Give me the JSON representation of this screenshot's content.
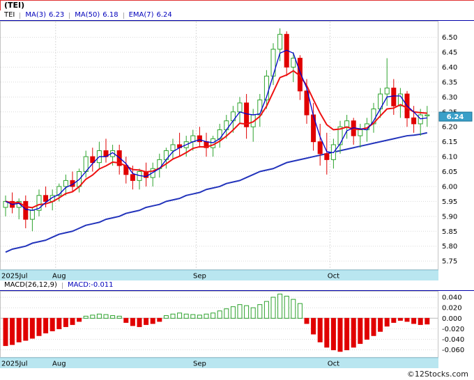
{
  "header": {
    "title": "(TEI)"
  },
  "legend": {
    "symbol": "TEI",
    "items": [
      {
        "label": "MA(3)",
        "value": "6.23"
      },
      {
        "label": "MA(50)",
        "value": "6.18"
      },
      {
        "label": "EMA(7)",
        "value": "6.24"
      }
    ]
  },
  "macd_legend": {
    "label": "MACD(26,12,9)",
    "value": "MACD:-0.011"
  },
  "footer": {
    "credit": "©12Stocks.com"
  },
  "colors": {
    "up": "#2da32d",
    "down": "#e00000",
    "ma3": "#0000cc",
    "ema7": "#ee1111",
    "ma50": "#2233bb",
    "grid": "#d9d9d9",
    "frame": "#c4c4c4",
    "band_bg": "#b9e6f0",
    "band_edge": "#8cc8da",
    "badge_bg": "#3a9fc8",
    "badge_border": "#1b7396",
    "badge_text": "#ffffff",
    "legend_text": "#0000bb",
    "accent_red": "#e03030"
  },
  "chart_data": [
    {
      "type": "candlestick",
      "title": "(TEI)",
      "last_price": "6.24",
      "x_axis": {
        "month_ticks": [
          {
            "label": "2025Jul",
            "index": 0
          },
          {
            "label": "Aug",
            "index": 8
          },
          {
            "label": "Sep",
            "index": 29
          },
          {
            "label": "Oct",
            "index": 49
          }
        ]
      },
      "y_axis": {
        "side": "right",
        "tick_labels": [
          "6.50",
          "6.45",
          "6.40",
          "6.35",
          "6.30",
          "6.25",
          "6.20",
          "6.15",
          "6.10",
          "6.05",
          "6.00",
          "5.95",
          "5.90",
          "5.85",
          "5.80",
          "5.75"
        ],
        "range": [
          5.72,
          6.555
        ],
        "grid": true
      },
      "series": [
        {
          "name": "OHLC",
          "type": "candle",
          "ohlc": [
            [
              5.93,
              5.97,
              5.9,
              5.95
            ],
            [
              5.95,
              5.98,
              5.91,
              5.93
            ],
            [
              5.93,
              5.96,
              5.89,
              5.95
            ],
            [
              5.95,
              5.97,
              5.86,
              5.89
            ],
            [
              5.89,
              5.93,
              5.85,
              5.92
            ],
            [
              5.92,
              5.99,
              5.9,
              5.97
            ],
            [
              5.97,
              6.0,
              5.93,
              5.95
            ],
            [
              5.95,
              5.99,
              5.92,
              5.97
            ],
            [
              5.97,
              6.01,
              5.95,
              6.0
            ],
            [
              6.0,
              6.04,
              5.97,
              6.02
            ],
            [
              6.02,
              6.05,
              5.98,
              6.0
            ],
            [
              6.0,
              6.06,
              5.98,
              6.05
            ],
            [
              6.05,
              6.12,
              6.03,
              6.1
            ],
            [
              6.1,
              6.13,
              6.05,
              6.08
            ],
            [
              6.08,
              6.15,
              6.06,
              6.12
            ],
            [
              6.12,
              6.16,
              6.08,
              6.1
            ],
            [
              6.1,
              6.14,
              6.07,
              6.12
            ],
            [
              6.12,
              6.14,
              6.04,
              6.07
            ],
            [
              6.07,
              6.1,
              6.01,
              6.04
            ],
            [
              6.04,
              6.07,
              5.99,
              6.02
            ],
            [
              6.02,
              6.06,
              5.99,
              6.05
            ],
            [
              6.05,
              6.08,
              6.0,
              6.03
            ],
            [
              6.03,
              6.08,
              6.0,
              6.06
            ],
            [
              6.06,
              6.11,
              6.03,
              6.09
            ],
            [
              6.09,
              6.13,
              6.06,
              6.12
            ],
            [
              6.12,
              6.16,
              6.09,
              6.14
            ],
            [
              6.14,
              6.18,
              6.1,
              6.13
            ],
            [
              6.13,
              6.17,
              6.1,
              6.15
            ],
            [
              6.15,
              6.19,
              6.12,
              6.17
            ],
            [
              6.17,
              6.2,
              6.13,
              6.15
            ],
            [
              6.15,
              6.18,
              6.1,
              6.13
            ],
            [
              6.13,
              6.17,
              6.1,
              6.16
            ],
            [
              6.16,
              6.21,
              6.13,
              6.19
            ],
            [
              6.19,
              6.24,
              6.16,
              6.22
            ],
            [
              6.22,
              6.27,
              6.18,
              6.25
            ],
            [
              6.25,
              6.3,
              6.21,
              6.28
            ],
            [
              6.28,
              6.31,
              6.16,
              6.2
            ],
            [
              6.2,
              6.26,
              6.15,
              6.24
            ],
            [
              6.24,
              6.31,
              6.2,
              6.29
            ],
            [
              6.29,
              6.39,
              6.26,
              6.37
            ],
            [
              6.37,
              6.48,
              6.34,
              6.46
            ],
            [
              6.46,
              6.53,
              6.42,
              6.51
            ],
            [
              6.51,
              6.52,
              6.37,
              6.4
            ],
            [
              6.4,
              6.45,
              6.35,
              6.43
            ],
            [
              6.43,
              6.44,
              6.29,
              6.32
            ],
            [
              6.32,
              6.36,
              6.21,
              6.24
            ],
            [
              6.24,
              6.28,
              6.12,
              6.15
            ],
            [
              6.15,
              6.21,
              6.07,
              6.11
            ],
            [
              6.11,
              6.18,
              6.04,
              6.09
            ],
            [
              6.09,
              6.16,
              6.06,
              6.14
            ],
            [
              6.14,
              6.22,
              6.11,
              6.2
            ],
            [
              6.2,
              6.24,
              6.16,
              6.22
            ],
            [
              6.22,
              6.23,
              6.14,
              6.17
            ],
            [
              6.17,
              6.21,
              6.13,
              6.19
            ],
            [
              6.19,
              6.23,
              6.15,
              6.21
            ],
            [
              6.21,
              6.28,
              6.18,
              6.26
            ],
            [
              6.26,
              6.33,
              6.23,
              6.31
            ],
            [
              6.31,
              6.43,
              6.27,
              6.33
            ],
            [
              6.33,
              6.36,
              6.24,
              6.27
            ],
            [
              6.27,
              6.33,
              6.23,
              6.31
            ],
            [
              6.31,
              6.32,
              6.2,
              6.23
            ],
            [
              6.23,
              6.27,
              6.18,
              6.21
            ],
            [
              6.21,
              6.26,
              6.17,
              6.24
            ],
            [
              6.24,
              6.27,
              6.2,
              6.24
            ]
          ]
        },
        {
          "name": "MA(3)",
          "type": "line",
          "derived": "sma",
          "window": 3,
          "color_key": "ma3"
        },
        {
          "name": "EMA(7)",
          "type": "line",
          "derived": "ema",
          "period": 7,
          "color_key": "ema7"
        },
        {
          "name": "MA(50)",
          "type": "line",
          "color_key": "ma50",
          "values": [
            5.78,
            5.79,
            5.795,
            5.8,
            5.81,
            5.815,
            5.82,
            5.83,
            5.84,
            5.845,
            5.85,
            5.86,
            5.87,
            5.875,
            5.88,
            5.89,
            5.895,
            5.9,
            5.91,
            5.915,
            5.92,
            5.93,
            5.935,
            5.94,
            5.95,
            5.955,
            5.96,
            5.97,
            5.975,
            5.98,
            5.99,
            5.995,
            6.0,
            6.01,
            6.015,
            6.02,
            6.03,
            6.04,
            6.05,
            6.055,
            6.06,
            6.07,
            6.08,
            6.085,
            6.09,
            6.095,
            6.1,
            6.105,
            6.11,
            6.115,
            6.12,
            6.125,
            6.13,
            6.135,
            6.14,
            6.145,
            6.15,
            6.155,
            6.16,
            6.165,
            6.17,
            6.172,
            6.175,
            6.18
          ]
        }
      ]
    },
    {
      "type": "bar",
      "title": "MACD(26,12,9)",
      "current_value": "-0.011",
      "x_axis": {
        "month_ticks": [
          {
            "label": "2025Jul",
            "index": 0
          },
          {
            "label": "Aug",
            "index": 8
          },
          {
            "label": "Sep",
            "index": 29
          },
          {
            "label": "Oct",
            "index": 49
          }
        ]
      },
      "y_axis": {
        "side": "right",
        "tick_labels": [
          "0.040",
          "0.020",
          "0.000",
          "-0.020",
          "-0.040",
          "-0.060"
        ],
        "range": [
          -0.075,
          0.052
        ],
        "grid": true
      },
      "values": [
        -0.052,
        -0.05,
        -0.045,
        -0.042,
        -0.038,
        -0.033,
        -0.028,
        -0.024,
        -0.02,
        -0.016,
        -0.012,
        -0.006,
        0.004,
        0.006,
        0.008,
        0.007,
        0.005,
        0.004,
        -0.008,
        -0.014,
        -0.016,
        -0.012,
        -0.01,
        -0.006,
        0.005,
        0.008,
        0.01,
        0.008,
        0.007,
        0.006,
        0.008,
        0.01,
        0.014,
        0.018,
        0.022,
        0.026,
        0.024,
        0.02,
        0.026,
        0.032,
        0.04,
        0.046,
        0.042,
        0.036,
        0.028,
        -0.01,
        -0.03,
        -0.045,
        -0.055,
        -0.06,
        -0.063,
        -0.06,
        -0.055,
        -0.048,
        -0.04,
        -0.033,
        -0.025,
        -0.015,
        -0.008,
        -0.004,
        -0.006,
        -0.01,
        -0.012,
        -0.011
      ]
    }
  ]
}
